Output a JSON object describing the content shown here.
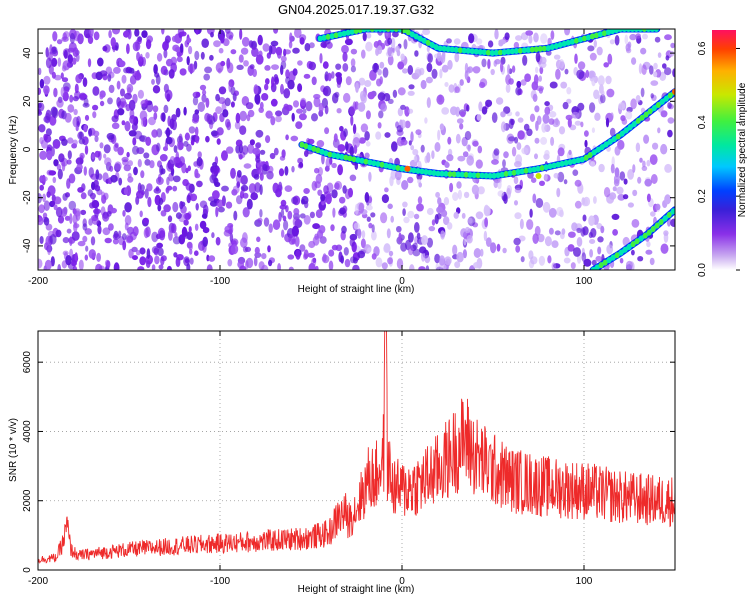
{
  "title": "GN04.2025.017.19.37.G32",
  "chart_data": [
    {
      "type": "heatmap",
      "xlabel": "Height of straight line (km)",
      "ylabel": "Frequency (Hz)",
      "xlim": [
        -200,
        150
      ],
      "ylim": [
        -50,
        50
      ],
      "xticks": [
        -200,
        -100,
        0,
        100
      ],
      "yticks": [
        -40,
        -20,
        0,
        20,
        40
      ],
      "colorbar": {
        "label": "Normalized spectral amplitude",
        "range": [
          0.0,
          0.65
        ],
        "ticks": [
          0.0,
          0.2,
          0.4,
          0.6
        ],
        "colors": [
          "#ffffff",
          "#c8a8f0",
          "#8a30e8",
          "#3a20d8",
          "#0040ff",
          "#00c8ff",
          "#00e8a0",
          "#40f040",
          "#c8e800",
          "#ffb000",
          "#ff4000",
          "#ff1060"
        ]
      },
      "ridges": [
        {
          "x": [
            -45,
            -20,
            0,
            20,
            50,
            80,
            100,
            120,
            140
          ],
          "y": [
            46,
            50,
            50,
            42,
            40,
            42,
            46,
            50,
            50
          ]
        },
        {
          "x": [
            -55,
            -40,
            -20,
            0,
            20,
            50,
            75,
            100,
            120,
            150
          ],
          "y": [
            2,
            -2,
            -5,
            -8,
            -10,
            -11,
            -8,
            -4,
            6,
            24
          ]
        },
        {
          "x": [
            105,
            120,
            135,
            150
          ],
          "y": [
            -50,
            -43,
            -35,
            -25
          ]
        }
      ]
    },
    {
      "type": "line",
      "xlabel": "Height of straight line (km)",
      "ylabel": "SNR (10 * v/v)",
      "xlim": [
        -200,
        150
      ],
      "ylim": [
        0,
        6900
      ],
      "xticks": [
        -200,
        -100,
        0,
        100
      ],
      "yticks": [
        0,
        2000,
        4000,
        6000
      ],
      "color": "#ee2a2a",
      "series": [
        {
          "x": [
            -200,
            -190,
            -186,
            -184,
            -182,
            -178,
            -170,
            -150,
            -120,
            -100,
            -80,
            -60,
            -50,
            -40,
            -35,
            -30,
            -25,
            -20,
            -18,
            -15,
            -12,
            -10,
            -9,
            -8,
            -5,
            0,
            10,
            20,
            30,
            35,
            40,
            50,
            60,
            80,
            100,
            120,
            140,
            150
          ],
          "y": [
            250,
            300,
            700,
            1100,
            500,
            350,
            400,
            500,
            600,
            650,
            700,
            750,
            800,
            900,
            1300,
            1400,
            1800,
            2400,
            2700,
            2600,
            3000,
            3400,
            6900,
            3100,
            2400,
            2300,
            2500,
            2900,
            3500,
            3800,
            3300,
            2900,
            2600,
            2400,
            2300,
            2100,
            2000,
            2000
          ]
        }
      ]
    }
  ]
}
